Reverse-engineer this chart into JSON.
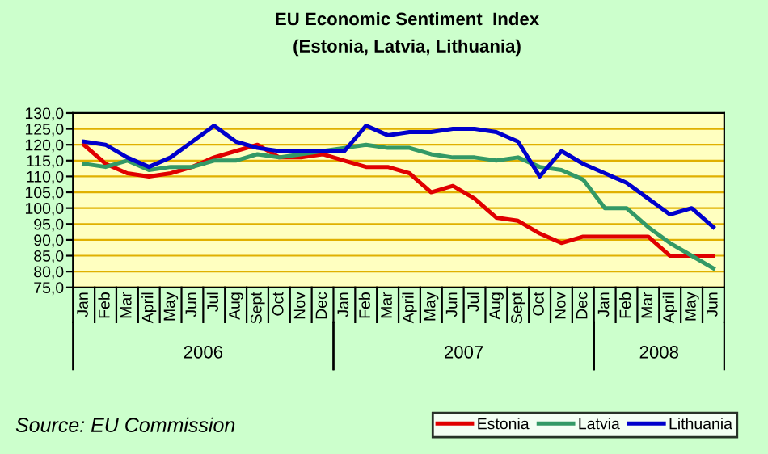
{
  "chart_data": {
    "type": "line",
    "title": "EU Economic Sentiment  Index",
    "subtitle": "(Estonia, Latvia, Lithuania)",
    "categories": [
      "Jan",
      "Feb",
      "Mar",
      "April",
      "May",
      "Jun",
      "Jul",
      "Aug",
      "Sept",
      "Oct",
      "Nov",
      "Dec",
      "Jan",
      "Feb",
      "Mar",
      "April",
      "May",
      "Jun",
      "Jul",
      "Aug",
      "Sept",
      "Oct",
      "Nov",
      "Dec",
      "Jan",
      "Feb",
      "Mar",
      "April",
      "May",
      "Jun"
    ],
    "series": [
      {
        "name": "Estonia",
        "color": "#e00000",
        "values": [
          120,
          114,
          111,
          110,
          111,
          113,
          116,
          118,
          120,
          116,
          116,
          117,
          115,
          113,
          113,
          111,
          105,
          107,
          103,
          97,
          96,
          92,
          89,
          91,
          91,
          91,
          91,
          85,
          85,
          85
        ]
      },
      {
        "name": "Latvia",
        "color": "#339966",
        "values": [
          114,
          113,
          115,
          112,
          113,
          113,
          115,
          115,
          117,
          116,
          117,
          118,
          119,
          120,
          119,
          119,
          117,
          116,
          116,
          115,
          116,
          113,
          112,
          109,
          100,
          100,
          94,
          89,
          85,
          81
        ]
      },
      {
        "name": "Lithuania",
        "color": "#0000cc",
        "values": [
          121,
          120,
          116,
          113,
          116,
          121,
          126,
          121,
          119,
          118,
          118,
          118,
          118,
          126,
          123,
          124,
          124,
          125,
          125,
          124,
          121,
          110,
          118,
          114,
          111,
          108,
          103,
          98,
          100,
          94
        ]
      }
    ],
    "ylim": [
      75,
      130
    ],
    "yticks": [
      {
        "value": 75,
        "label": "75,0"
      },
      {
        "value": 80,
        "label": "80,0"
      },
      {
        "value": 85,
        "label": "85,0"
      },
      {
        "value": 90,
        "label": "90,0"
      },
      {
        "value": 95,
        "label": "95,0"
      },
      {
        "value": 100,
        "label": "100,0"
      },
      {
        "value": 105,
        "label": "105,0"
      },
      {
        "value": 110,
        "label": "110,0"
      },
      {
        "value": 115,
        "label": "115,0"
      },
      {
        "value": 120,
        "label": "120,0"
      },
      {
        "value": 125,
        "label": "125,0"
      },
      {
        "value": 130,
        "label": "130,0"
      }
    ],
    "grid": "y",
    "legend": "bottom right",
    "annotations": [
      "2006",
      "2007",
      "2008",
      "Source: EU Commission"
    ]
  }
}
